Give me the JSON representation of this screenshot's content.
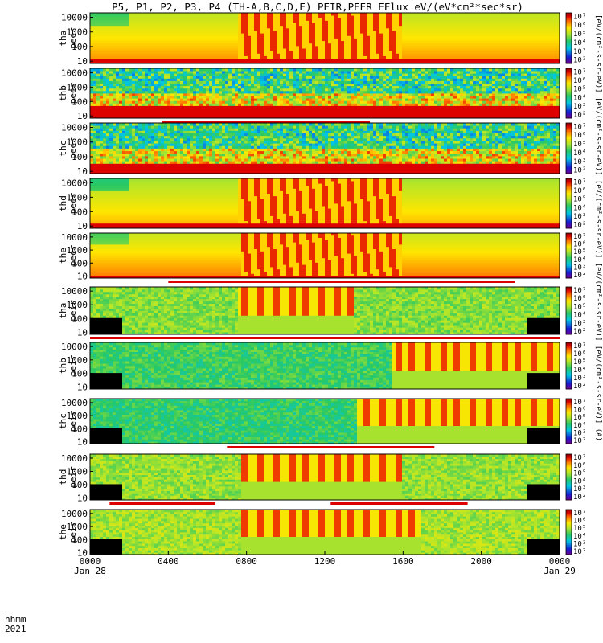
{
  "chart_data": {
    "type": "heatmap",
    "title": "P5, P1, P2, P3, P4 (TH-A,B,C,D,E) PEIR,PEER EFlux eV/(eV*cm²*sec*sr)",
    "colorbar_unit_label": "[eV/(cm²-s-sr-eV)] [eV/(cm²-s-sr-eV)] [eV/(cm²-s-sr-eV)] [eV/(cm²-s-sr-eV)] [eV/(cm²-s-sr-eV)] (A)",
    "x_axis": {
      "row_labels": [
        "hhmm",
        "2021"
      ],
      "range_hours": [
        0,
        24
      ],
      "ticks": [
        {
          "hour": 0,
          "label": "0000",
          "date": "Jan 28"
        },
        {
          "hour": 4,
          "label": "0400",
          "date": ""
        },
        {
          "hour": 8,
          "label": "0800",
          "date": ""
        },
        {
          "hour": 12,
          "label": "1200",
          "date": ""
        },
        {
          "hour": 16,
          "label": "1600",
          "date": ""
        },
        {
          "hour": 20,
          "label": "2000",
          "date": ""
        },
        {
          "hour": 24,
          "label": "0000",
          "date": "Jan 29"
        }
      ]
    },
    "y_axis": {
      "scale": "log",
      "range": [
        7,
        20000
      ],
      "ticks": [
        {
          "v": 10,
          "label": "10"
        },
        {
          "v": 100,
          "label": "100"
        },
        {
          "v": 1000,
          "label": "1000"
        },
        {
          "v": 10000,
          "label": "10000"
        }
      ]
    },
    "colorbar_ticks": [
      {
        "e": 2,
        "label": "10²"
      },
      {
        "e": 3,
        "label": "10³"
      },
      {
        "e": 4,
        "label": "10⁴"
      },
      {
        "e": 5,
        "label": "10⁵"
      },
      {
        "e": 6,
        "label": "10⁶"
      },
      {
        "e": 7,
        "label": "10⁷"
      }
    ],
    "colorbar_range_exp": [
      1.6,
      7.4
    ],
    "panels": [
      {
        "name": "tha peer",
        "label1": "tha",
        "label2": "peer",
        "kind": "peer",
        "base": 5.8,
        "floor": 14,
        "burst": [
          [
            7.5,
            16
          ]
        ],
        "flag": []
      },
      {
        "name": "thb peer",
        "label1": "thb",
        "label2": "peer",
        "kind": "peer_low",
        "base": 3.8,
        "floor": 60,
        "burst": [],
        "flag": [
          [
            3.7,
            14.3
          ]
        ]
      },
      {
        "name": "thc peer",
        "label1": "thc",
        "label2": "peer",
        "kind": "peer_low",
        "base": 3.2,
        "floor": 40,
        "burst": [],
        "flag": []
      },
      {
        "name": "thd peer",
        "label1": "thd",
        "label2": "peer",
        "kind": "peer",
        "base": 5.6,
        "floor": 14,
        "burst": [
          [
            7.5,
            16
          ]
        ],
        "flag": []
      },
      {
        "name": "the peer",
        "label1": "the",
        "label2": "peer",
        "kind": "peer",
        "base": 5.9,
        "floor": 12,
        "burst": [
          [
            7.7,
            16
          ]
        ],
        "flag": [
          [
            4.0,
            21.7
          ]
        ]
      },
      {
        "name": "tha peir",
        "label1": "tha",
        "label2": "peir",
        "kind": "peir",
        "base": 4.8,
        "floor": 0,
        "burst": [
          [
            7.5,
            13.5
          ]
        ],
        "flag": [
          [
            0,
            24
          ]
        ]
      },
      {
        "name": "thb peir",
        "label1": "thb",
        "label2": "peir",
        "kind": "peir_low",
        "base": 4.3,
        "floor": 0,
        "burst": [
          [
            15.5,
            24
          ]
        ],
        "flag": []
      },
      {
        "name": "thc peir",
        "label1": "thc",
        "label2": "peir",
        "kind": "peir_low",
        "base": 4.2,
        "floor": 0,
        "burst": [
          [
            13.7,
            24
          ]
        ],
        "flag": [
          [
            7.0,
            17.6
          ]
        ]
      },
      {
        "name": "thd peir",
        "label1": "thd",
        "label2": "peir",
        "kind": "peir",
        "base": 4.9,
        "floor": 0,
        "burst": [
          [
            7.7,
            16
          ]
        ],
        "flag": [
          [
            1.0,
            6.4
          ],
          [
            12.3,
            19.3
          ]
        ]
      },
      {
        "name": "the peir",
        "label1": "the",
        "label2": "peir",
        "kind": "peir",
        "base": 5.0,
        "floor": 0,
        "burst": [
          [
            7.8,
            17
          ]
        ],
        "flag": []
      }
    ]
  }
}
